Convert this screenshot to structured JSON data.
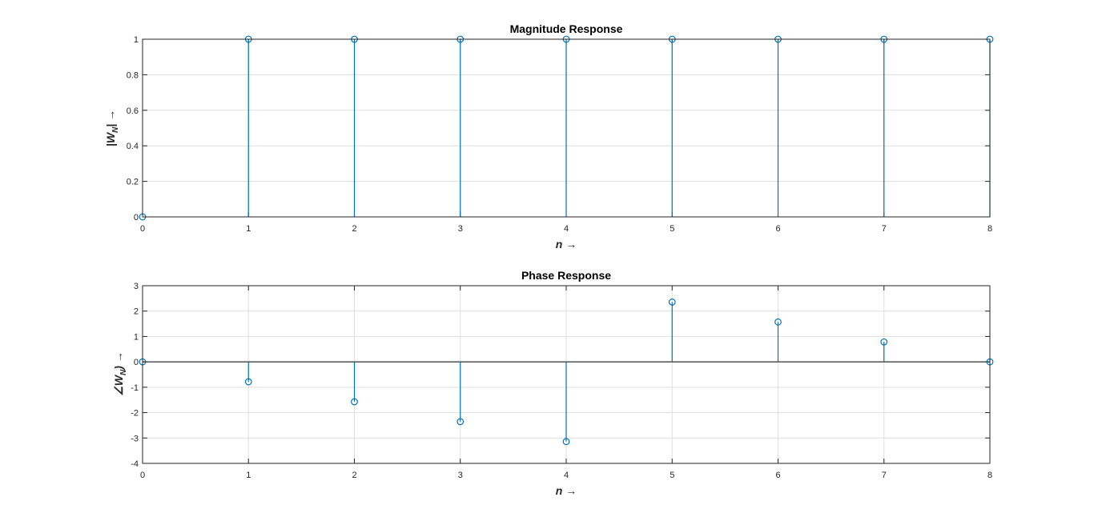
{
  "colors": {
    "stem": "#0072BD",
    "grid": "#DFDFDF",
    "axis": "#262626",
    "background": "#FFFFFF"
  },
  "chart_data": [
    {
      "type": "stem",
      "title": "Magnitude Response",
      "xlabel": "n →",
      "ylabel": "|W_N| →",
      "ylabel_parts": {
        "pre": "|W",
        "sub": "N",
        "post": "| →"
      },
      "xlim": [
        0,
        8
      ],
      "ylim": [
        0,
        1
      ],
      "x_ticks": [
        0,
        1,
        2,
        3,
        4,
        5,
        6,
        7,
        8
      ],
      "y_ticks": [
        0,
        0.2,
        0.4,
        0.6,
        0.8,
        1
      ],
      "y_tick_labels": [
        "0",
        "0.2",
        "0.4",
        "0.6",
        "0.8",
        "1"
      ],
      "grid": true,
      "x": [
        0,
        1,
        2,
        3,
        4,
        5,
        6,
        7,
        8
      ],
      "values": [
        0,
        1,
        1,
        1,
        1,
        1,
        1,
        1,
        1
      ]
    },
    {
      "type": "stem",
      "title": "Phase Response",
      "xlabel": "n →",
      "ylabel": "∠W_N) →",
      "ylabel_parts": {
        "pre": "∠W",
        "sub": "N",
        "post": ") →"
      },
      "xlim": [
        0,
        8
      ],
      "ylim": [
        -4,
        3
      ],
      "x_ticks": [
        0,
        1,
        2,
        3,
        4,
        5,
        6,
        7,
        8
      ],
      "y_ticks": [
        -4,
        -3,
        -2,
        -1,
        0,
        1,
        2,
        3
      ],
      "y_tick_labels": [
        "-4",
        "-3",
        "-2",
        "-1",
        "0",
        "1",
        "2",
        "3"
      ],
      "grid": true,
      "x": [
        0,
        1,
        2,
        3,
        4,
        5,
        6,
        7,
        8
      ],
      "values": [
        0,
        -0.785,
        -1.571,
        -2.356,
        -3.1416,
        2.356,
        1.571,
        0.785,
        0
      ]
    }
  ]
}
